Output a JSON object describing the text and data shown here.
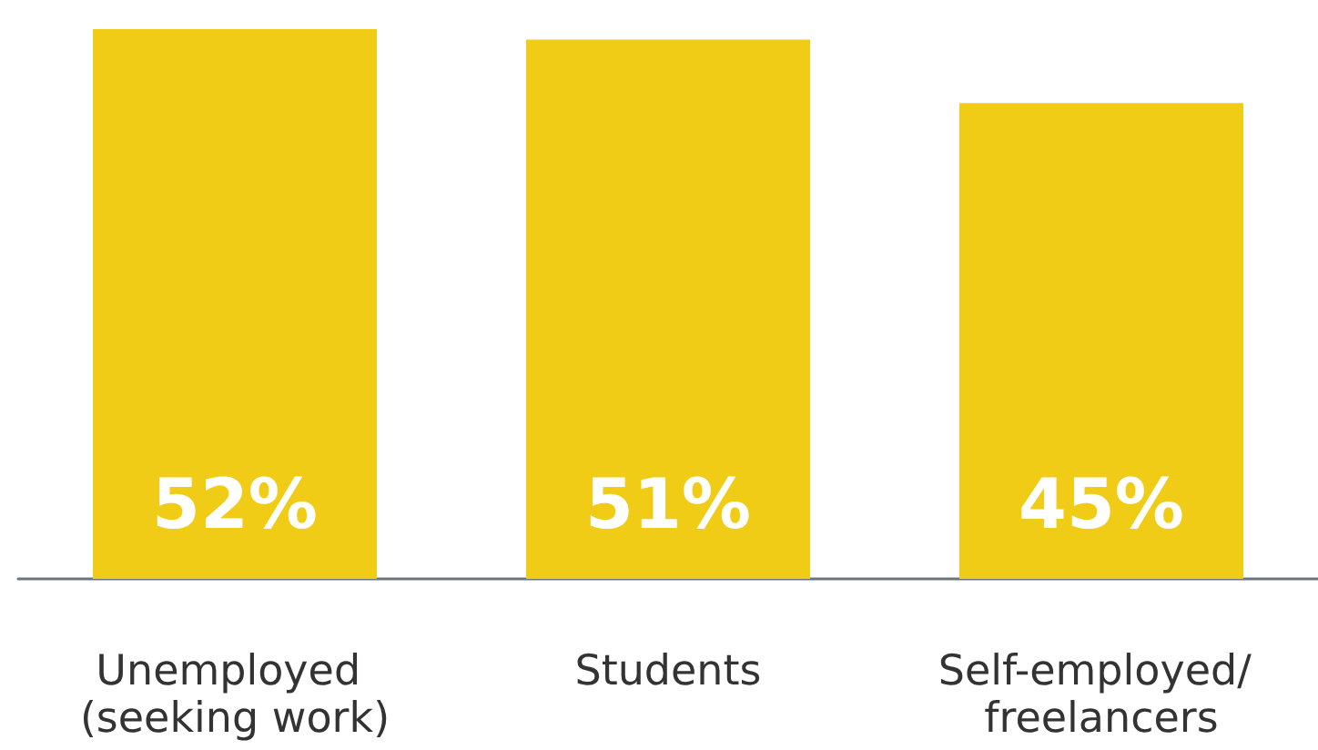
{
  "chart_data": {
    "type": "bar",
    "categories": [
      "Unemployed (seeking work)",
      "Students",
      "Self-employed/ freelancers"
    ],
    "values": [
      52,
      51,
      45
    ],
    "value_labels": [
      "52%",
      "51%",
      "45%"
    ],
    "color": "#f0cc16"
  }
}
